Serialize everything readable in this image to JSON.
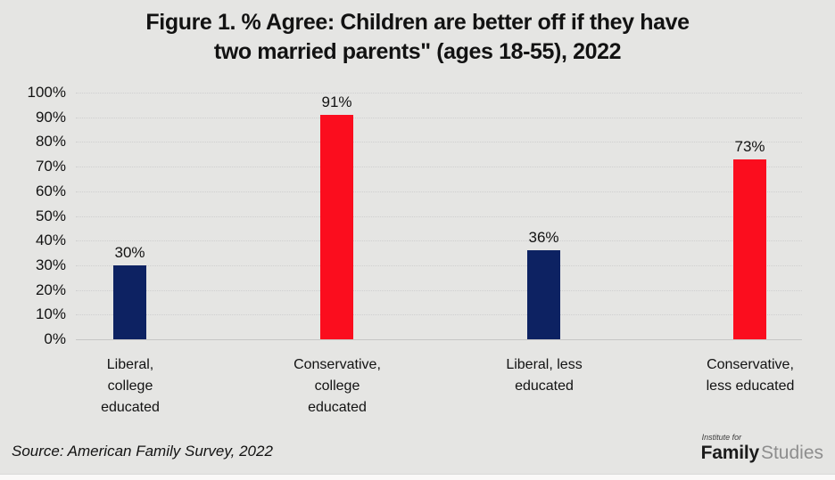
{
  "title": {
    "line1": "Figure 1. % Agree: Children are better off if they have",
    "line2": "two married parents\" (ages 18-55), 2022"
  },
  "chart_data": {
    "type": "bar",
    "title": "Figure 1. % Agree: Children are better off if they have two married parents\" (ages 18-55), 2022",
    "categories": [
      "Liberal, college educated",
      "Conservative, college educated",
      "Liberal, less educated",
      "Conservative, less educated"
    ],
    "categories_display": [
      "Liberal,\ncollege\neducated",
      "Conservative,\ncollege\neducated",
      "Liberal, less\neducated",
      "Conservative,\nless educated"
    ],
    "values": [
      30,
      91,
      36,
      73
    ],
    "value_labels": [
      "30%",
      "91%",
      "36%",
      "73%"
    ],
    "bar_colors": [
      "#0d2262",
      "#fb0d1e",
      "#0d2262",
      "#fb0d1e"
    ],
    "xlabel": "",
    "ylabel": "",
    "ylim": [
      0,
      100
    ],
    "ytick_labels": [
      "100%",
      "90%",
      "80%",
      "70%",
      "60%",
      "50%",
      "40%",
      "30%",
      "20%",
      "10%",
      "0%"
    ],
    "grid": true,
    "legend": false
  },
  "footer": {
    "source": "Source: American Family Survey, 2022",
    "logo": {
      "top_line": "Institute for",
      "name_bold": "Family",
      "name_light": "Studies"
    }
  },
  "colors": {
    "background": "#e5e5e3",
    "navy": "#0d2262",
    "red": "#fb0d1e",
    "gridline": "#cfcfcf",
    "baseline": "#c6c6c6",
    "text": "#121212",
    "logo-light": "#8e8e8e"
  }
}
